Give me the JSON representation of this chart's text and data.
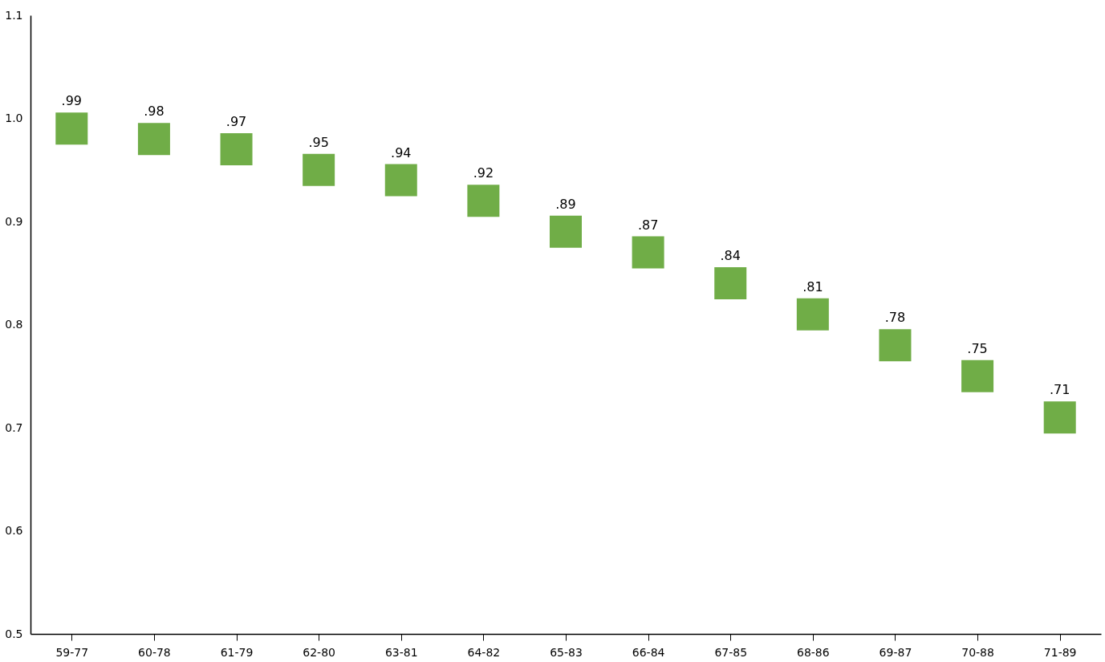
{
  "chart_data": {
    "type": "scatter",
    "marker": "square",
    "grid": false,
    "legend": false,
    "categories": [
      "59-77",
      "60-78",
      "61-79",
      "62-80",
      "63-81",
      "64-82",
      "65-83",
      "66-84",
      "67-85",
      "68-86",
      "69-87",
      "70-88",
      "71-89"
    ],
    "series": [
      {
        "color": "#70ad47",
        "values": [
          0.99,
          0.98,
          0.97,
          0.95,
          0.94,
          0.92,
          0.89,
          0.87,
          0.84,
          0.81,
          0.78,
          0.75,
          0.71
        ],
        "value_labels": [
          ".99",
          ".98",
          ".97",
          ".95",
          ".94",
          ".92",
          ".89",
          ".87",
          ".84",
          ".81",
          ".78",
          ".75",
          ".71"
        ]
      }
    ],
    "ylim": [
      0.5,
      1.1
    ],
    "yticks": [
      0.5,
      0.6,
      0.7,
      0.8,
      0.9,
      {
        "value": 1.0,
        "label": "1.0"
      },
      1.1
    ]
  }
}
